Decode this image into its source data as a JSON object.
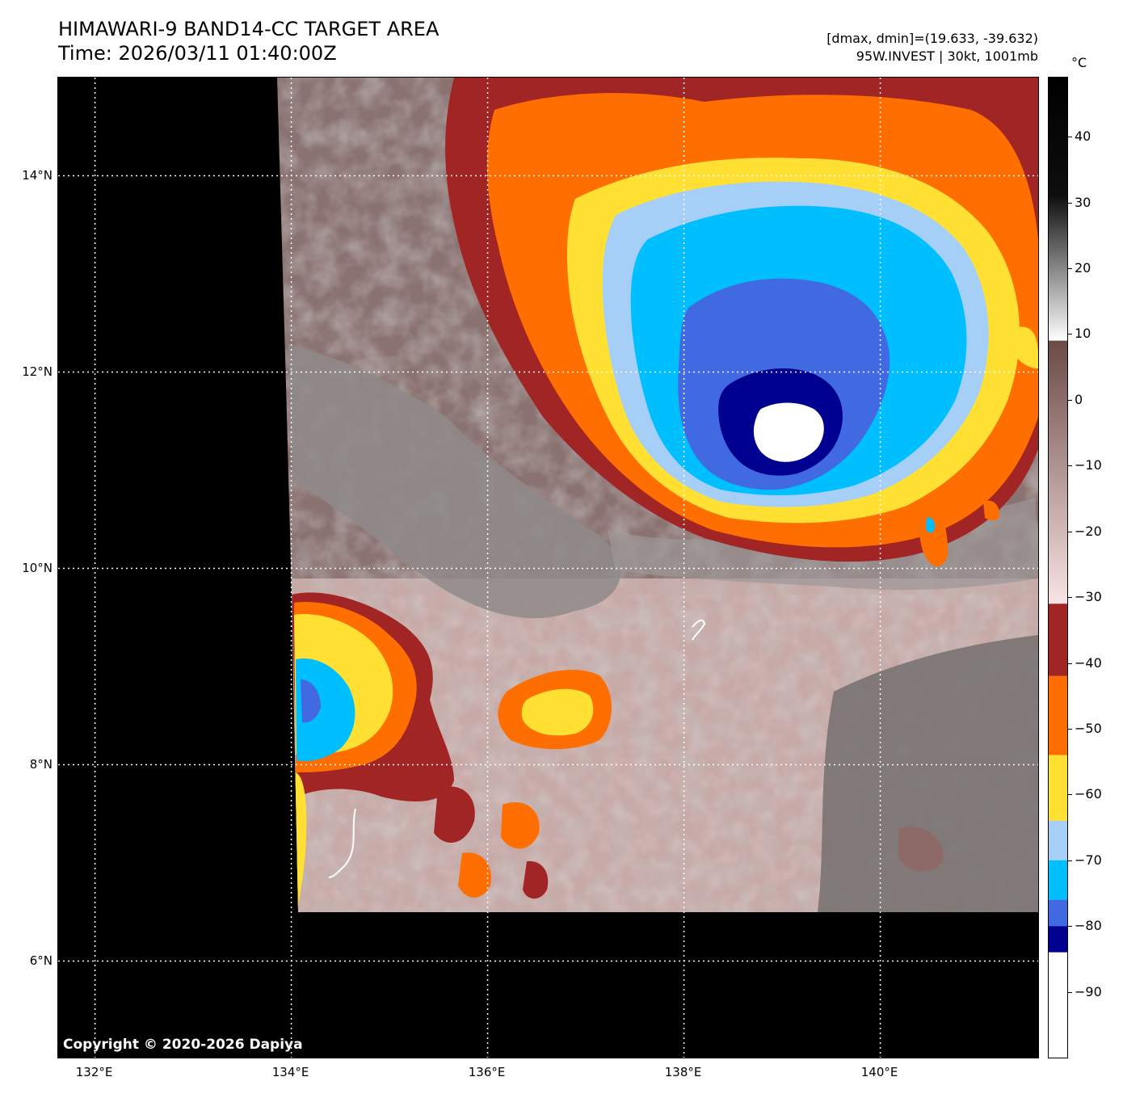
{
  "header": {
    "title_line1": "HIMAWARI-9 BAND14-CC TARGET AREA",
    "title_line2": "Time: 2026/03/11 01:40:00Z",
    "info_line1": "[dmax, dmin]=(19.633, -39.632)",
    "info_line2": "95W.INVEST | 30kt, 1001mb"
  },
  "map": {
    "lon_range": [
      131.625,
      141.625
    ],
    "lat_range": [
      5.0,
      15.0
    ],
    "lon_ticks": [
      132,
      134,
      136,
      138,
      140
    ],
    "lon_tick_labels": [
      "132°E",
      "134°E",
      "136°E",
      "138°E",
      "140°E"
    ],
    "lat_ticks": [
      14,
      12,
      10,
      8,
      6
    ],
    "lat_tick_labels": [
      "14°N",
      "12°N",
      "10°N",
      "8°N",
      "6°N"
    ],
    "gridlines": "dotted white",
    "no_data_color": "#000000",
    "storm_center_lon": 139.0,
    "storm_center_lat": 11.6,
    "copyright": "Copyright © 2020-2026 Dapiya"
  },
  "colorbar": {
    "unit": "°C",
    "range": [
      -100,
      49
    ],
    "tick_values": [
      40,
      30,
      20,
      10,
      0,
      -10,
      -20,
      -30,
      -40,
      -50,
      -60,
      -70,
      -80,
      -90
    ],
    "tick_labels": [
      "40",
      "30",
      "20",
      "10",
      "0",
      "−10",
      "−20",
      "−30",
      "−40",
      "−50",
      "−60",
      "−70",
      "−80",
      "−90"
    ],
    "bands": [
      {
        "from": 9,
        "to": 49,
        "colors": [
          "#ffffff",
          "#000000"
        ]
      },
      {
        "from": -31,
        "to": 9,
        "colors": [
          "#f9e3e3",
          "#6b4a47"
        ]
      },
      {
        "from": -42,
        "to": -31,
        "colors": [
          "#a12525"
        ]
      },
      {
        "from": -54,
        "to": -42,
        "colors": [
          "#ff6e00"
        ]
      },
      {
        "from": -64,
        "to": -54,
        "colors": [
          "#ffe033"
        ]
      },
      {
        "from": -70,
        "to": -64,
        "colors": [
          "#a6cff7"
        ]
      },
      {
        "from": -76,
        "to": -70,
        "colors": [
          "#00bfff"
        ]
      },
      {
        "from": -80,
        "to": -76,
        "colors": [
          "#4169e1"
        ]
      },
      {
        "from": -84,
        "to": -80,
        "colors": [
          "#000090"
        ]
      },
      {
        "from": -100,
        "to": -84,
        "colors": [
          "#ffffff"
        ]
      }
    ]
  }
}
